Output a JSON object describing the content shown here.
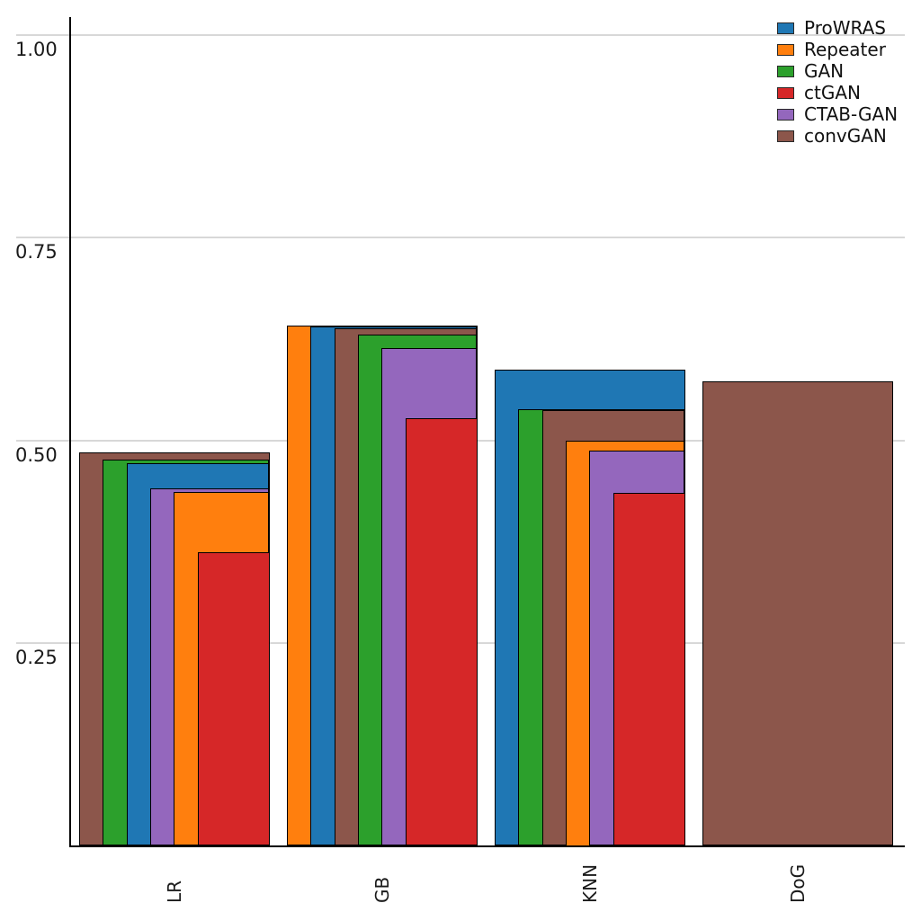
{
  "chart_data": {
    "type": "bar",
    "variant": "overlapping-nested-right-aligned",
    "title": "",
    "xlabel": "",
    "ylabel": "",
    "categories": [
      "LR",
      "GB",
      "KNN",
      "DoG"
    ],
    "series": [
      {
        "name": "ProWRAS",
        "color": "#1f77b4",
        "values": [
          0.472,
          0.64,
          0.587,
          null
        ]
      },
      {
        "name": "Repeater",
        "color": "#ff7f0e",
        "values": [
          0.436,
          0.641,
          0.5,
          null
        ]
      },
      {
        "name": "GAN",
        "color": "#2ca02c",
        "values": [
          0.476,
          0.63,
          0.538,
          null
        ]
      },
      {
        "name": "ctGAN",
        "color": "#d62728",
        "values": [
          0.362,
          0.527,
          0.435,
          null
        ]
      },
      {
        "name": "CTAB-GAN",
        "color": "#9467bd",
        "values": [
          0.441,
          0.614,
          0.487,
          null
        ]
      },
      {
        "name": "convGAN",
        "color": "#8c564b",
        "values": [
          0.485,
          0.638,
          0.537,
          0.573
        ]
      }
    ],
    "y_axis": {
      "tick_labels": [
        "1.00",
        "0.75",
        "0.50",
        "0.25"
      ],
      "tick_values": [
        1.0,
        0.75,
        0.5,
        0.25
      ],
      "ylim": [
        0,
        1.02
      ],
      "grid": true
    },
    "legend": {
      "position": "top-right",
      "entries": [
        "ProWRAS",
        "Repeater",
        "GAN",
        "ctGAN",
        "CTAB-GAN",
        "convGAN"
      ]
    },
    "colors": {
      "bar_edge": "#000000",
      "grid": "#d8d8d8",
      "background": "#ffffff",
      "text": "#1a1a1a"
    }
  }
}
